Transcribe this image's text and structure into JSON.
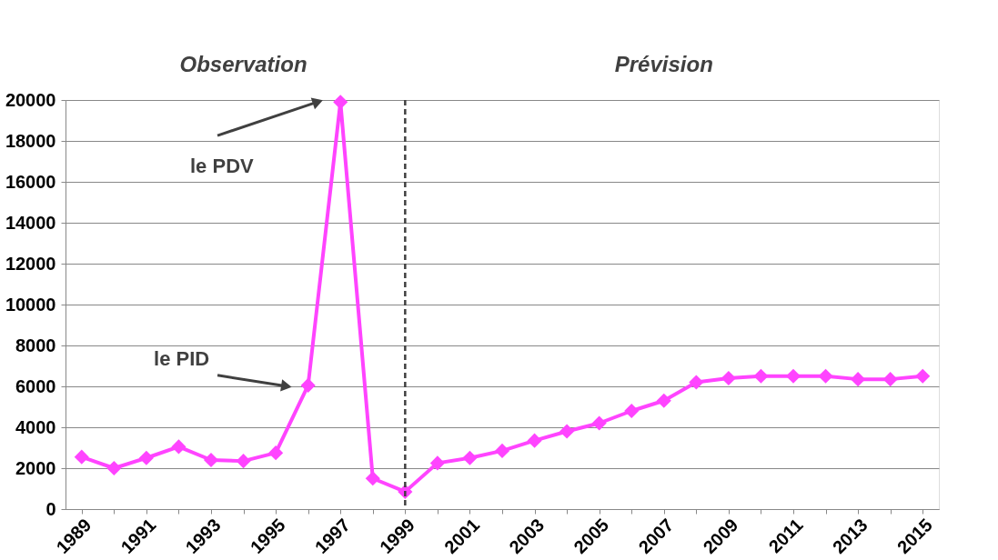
{
  "chart_data": {
    "type": "line",
    "categories": [
      "1989",
      null,
      "1991",
      null,
      "1993",
      null,
      "1995",
      null,
      "1997",
      null,
      "1999",
      null,
      "2001",
      null,
      "2003",
      null,
      "2005",
      null,
      "2007",
      null,
      "2009",
      null,
      "2011",
      null,
      "2013",
      null,
      "2015"
    ],
    "series": [
      {
        "color": "#ff44ff",
        "values": [
          2550,
          2000,
          2500,
          3050,
          2400,
          2350,
          2750,
          6050,
          19900,
          1500,
          850,
          2250,
          2500,
          2850,
          3350,
          3800,
          4200,
          4800,
          5300,
          6200,
          6400,
          6500,
          6500,
          6500,
          6350,
          6350,
          6500
        ]
      }
    ],
    "ylim": [
      0,
      20000
    ],
    "yticks": [
      0,
      2000,
      4000,
      6000,
      8000,
      10000,
      12000,
      14000,
      16000,
      18000,
      20000
    ],
    "grid": "y",
    "marker": "diamond",
    "line_style": "solid",
    "ref_lines": [
      {
        "axis": "x",
        "value": "1999",
        "color": "#404040",
        "line_style": "dashed"
      }
    ],
    "annotations": [
      "Observation",
      "Prévision",
      "le PDV",
      "le PID"
    ]
  }
}
